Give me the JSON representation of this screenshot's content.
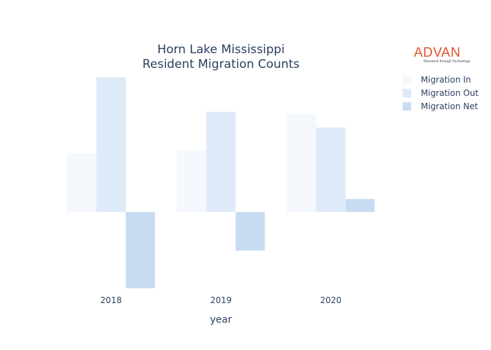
{
  "brand": {
    "name": "ADVAN",
    "tagline": "Research through Technology",
    "color": "#e0532b"
  },
  "chart_data": {
    "type": "bar",
    "title_lines": [
      "Horn Lake Mississippi",
      "Resident Migration Counts"
    ],
    "xlabel": "year",
    "ylabel": "",
    "categories": [
      "2018",
      "2019",
      "2020"
    ],
    "series": [
      {
        "name": "Migration In",
        "color": "#f5f9fe",
        "values": [
          1520,
          1600,
          2540
        ]
      },
      {
        "name": "Migration Out",
        "color": "#deeaf8",
        "values": [
          3510,
          2610,
          2200
        ]
      },
      {
        "name": "Migration Net",
        "color": "#c7dbf2",
        "values": [
          -1990,
          -1010,
          340
        ]
      }
    ],
    "ylim": [
      -2050,
      3700
    ],
    "grid": false,
    "legend": "top-right"
  }
}
